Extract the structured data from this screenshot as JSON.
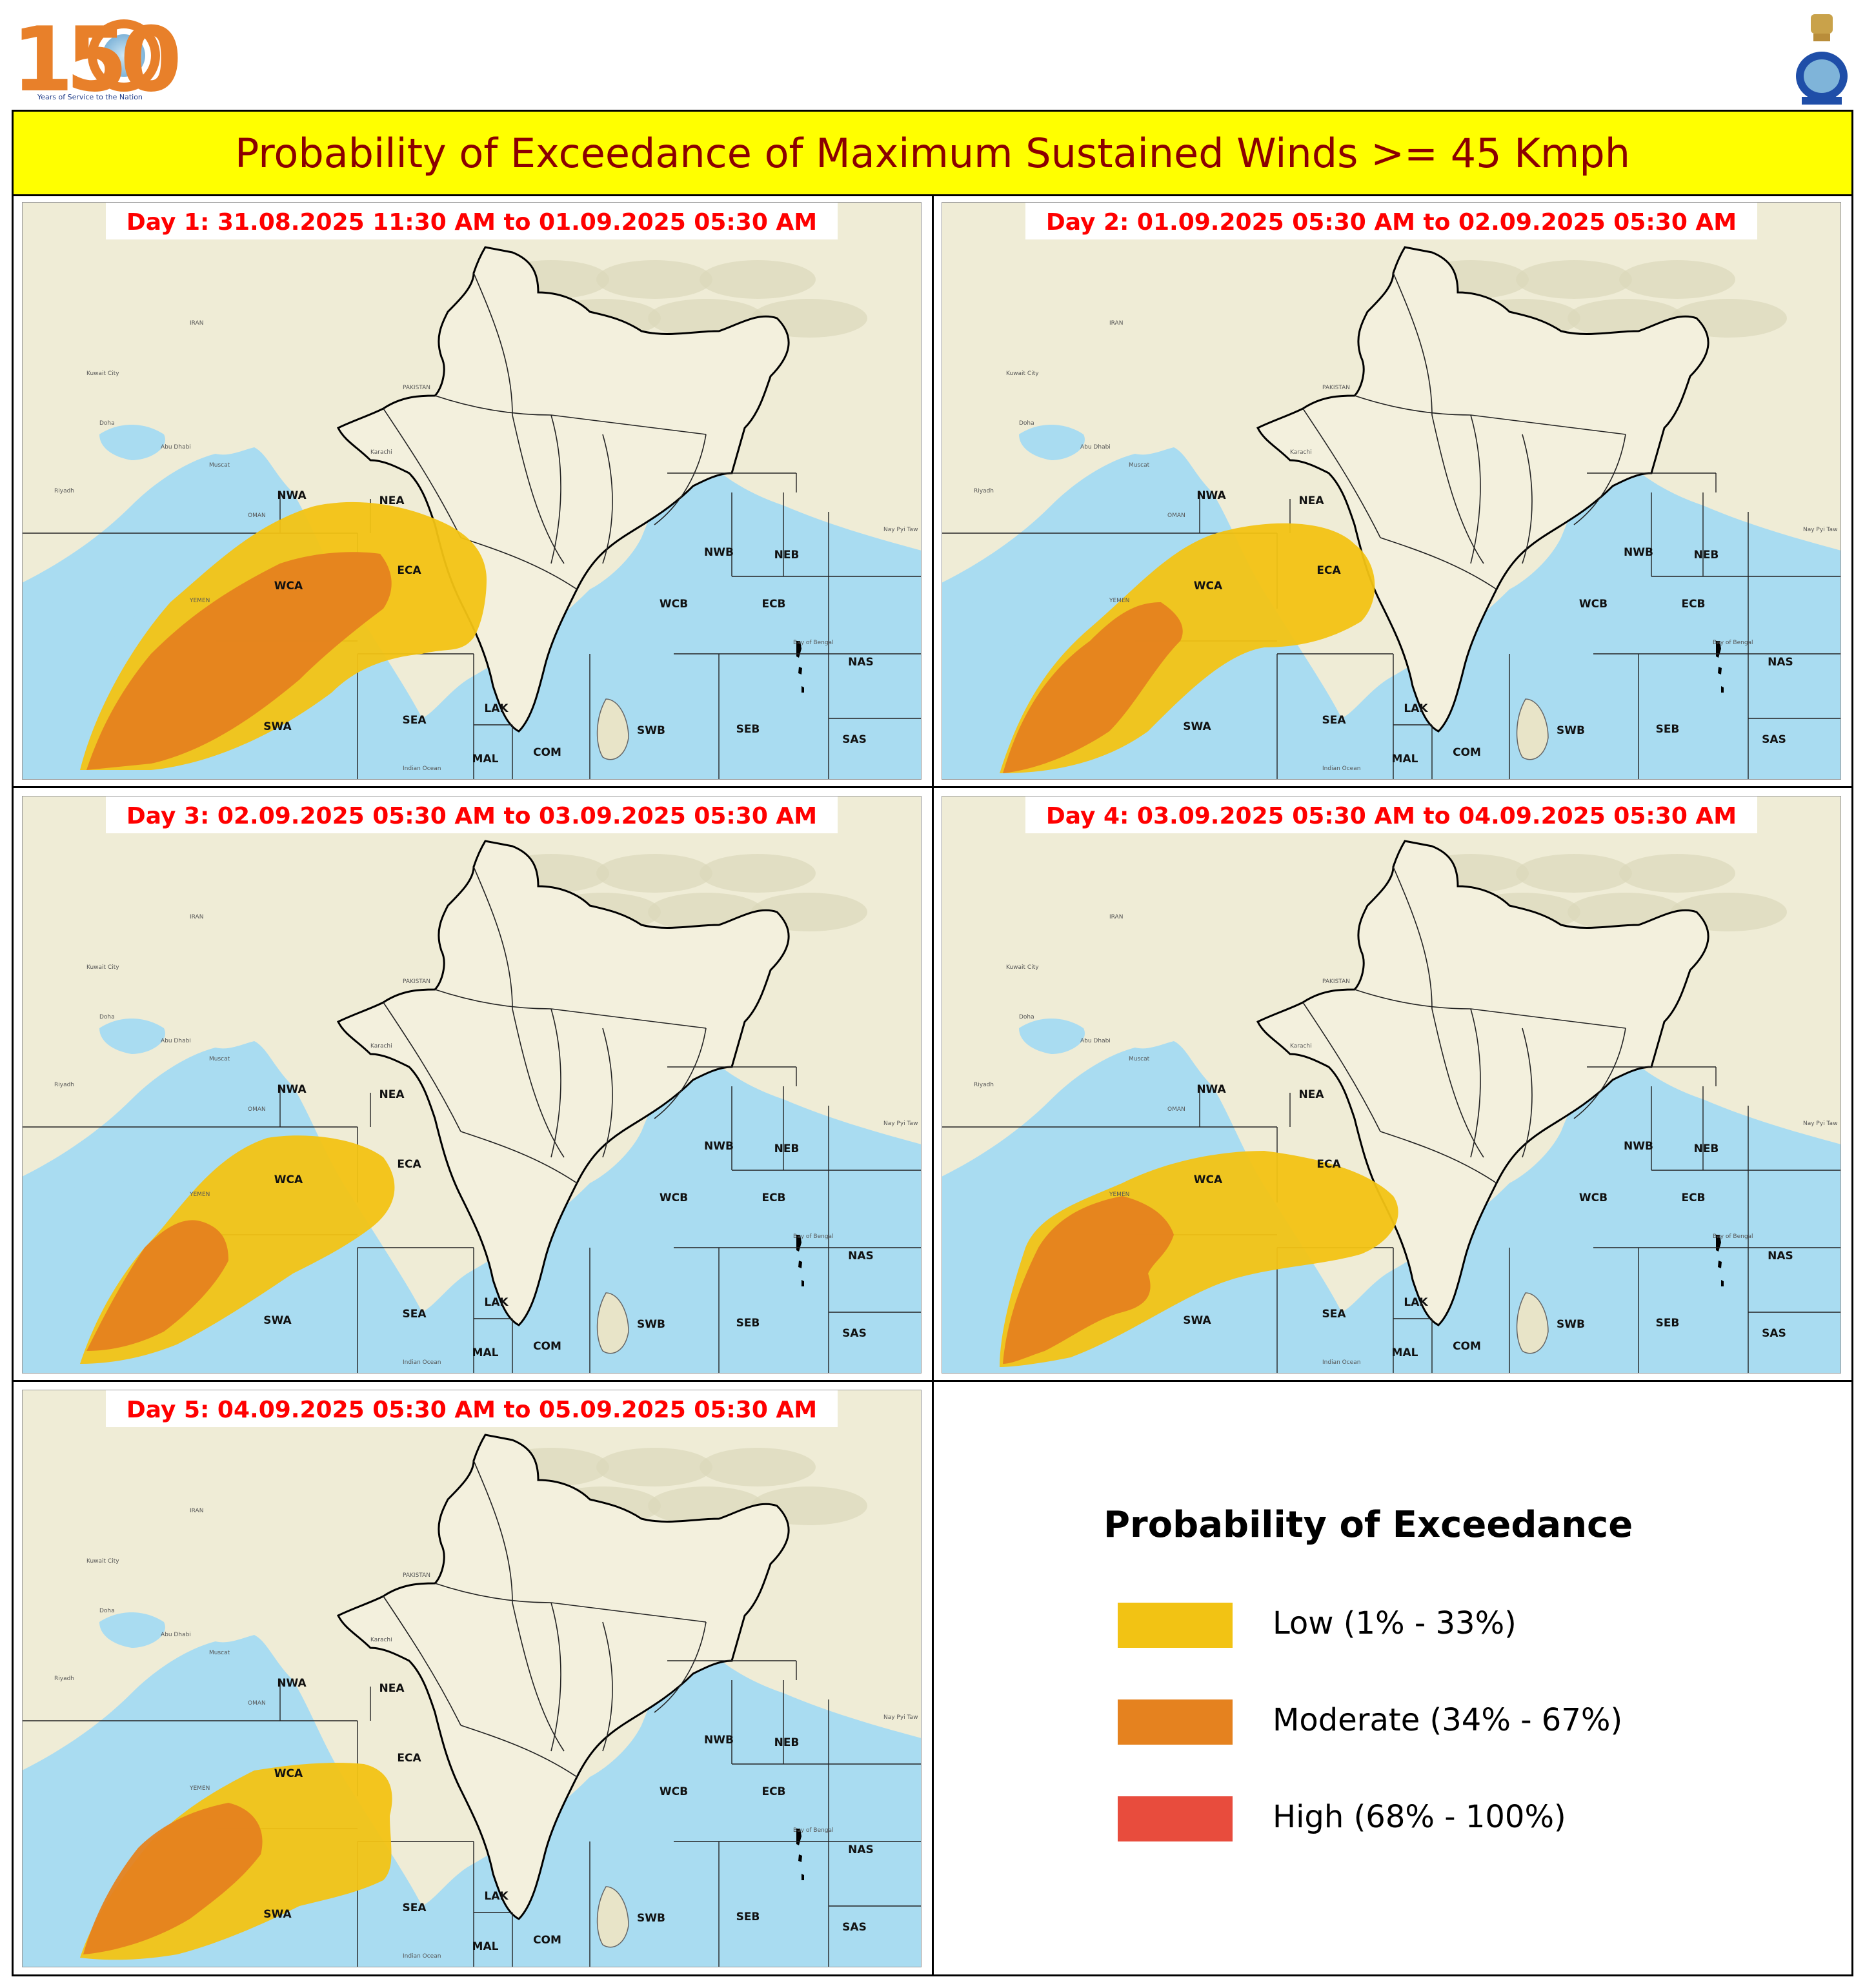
{
  "header": {
    "logo_number": "150",
    "logo_tagline": "Years of Service to the Nation",
    "title": "Probability of Exceedance of Maximum Sustained Winds >= 45 Kmph"
  },
  "panels": [
    {
      "day_label": "Day 1: 31.08.2025 11:30 AM to 01.09.2025 05:30 AM"
    },
    {
      "day_label": "Day 2: 01.09.2025 05:30 AM to 02.09.2025 05:30 AM"
    },
    {
      "day_label": "Day 3: 02.09.2025 05:30 AM to 03.09.2025 05:30 AM"
    },
    {
      "day_label": "Day 4: 03.09.2025 05:30 AM to 04.09.2025 05:30 AM"
    },
    {
      "day_label": "Day 5: 04.09.2025 05:30 AM to 05.09.2025 05:30 AM"
    }
  ],
  "regions": [
    "NWA",
    "NEA",
    "ECA",
    "WCA",
    "SWA",
    "SEA",
    "LAK",
    "MAL",
    "COM",
    "NWB",
    "NEB",
    "WCB",
    "ECB",
    "SWB",
    "SEB",
    "NAS",
    "SAS"
  ],
  "places": [
    "IRAN",
    "PAKISTAN",
    "OMAN",
    "YEMEN",
    "Kuwait City",
    "Doha",
    "Abu Dhabi",
    "Muscat",
    "Karachi",
    "Bay of Bengal",
    "Indian Ocean",
    "Nay Pyi Taw",
    "Riyadh"
  ],
  "legend": {
    "title": "Probability of Exceedance",
    "items": [
      {
        "label": "Low (1% - 33%)",
        "color": "#f2c314"
      },
      {
        "label": "Moderate (34% - 67%)",
        "color": "#e5821f"
      },
      {
        "label": "High (68% - 100%)",
        "color": "#e84c3d"
      }
    ]
  },
  "colors": {
    "title_bg": "#ffff00",
    "title_text": "#8b0000",
    "day_label": "#ff0000",
    "land": "#efecd6",
    "sea": "#a9dcf1"
  }
}
